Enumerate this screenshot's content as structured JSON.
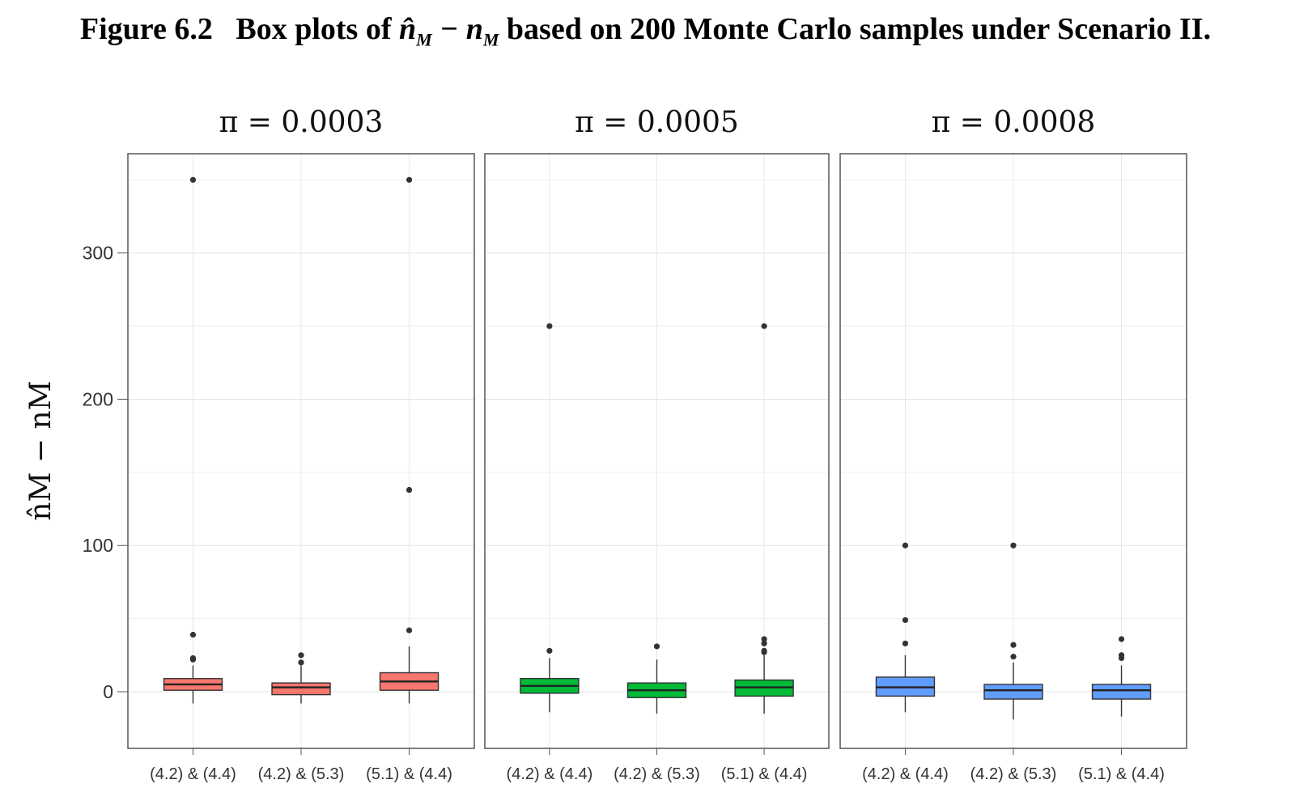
{
  "figure": {
    "label": "Figure 6.2",
    "prefix": "Box plots of",
    "suffix": "based on 200 Monte Carlo samples under Scenario II."
  },
  "chart_data": {
    "type": "box",
    "ylabel": "n̂M − nM",
    "ylim": [
      -38,
      365
    ],
    "yticks": [
      0,
      100,
      200,
      300
    ],
    "grid": true,
    "categories": [
      "(4.2) & (4.4)",
      "(4.2) & (5.3)",
      "(5.1) & (4.4)"
    ],
    "panels": [
      {
        "title": "π = 0.0003",
        "color": "#F8766D",
        "boxes": [
          {
            "whisker_low": -8,
            "q1": 1,
            "median": 5,
            "q3": 9,
            "whisker_high": 18,
            "outliers": [
              22,
              23,
              39,
              350
            ]
          },
          {
            "whisker_low": -8,
            "q1": -2,
            "median": 3,
            "q3": 6,
            "whisker_high": 18,
            "outliers": [
              20,
              25
            ]
          },
          {
            "whisker_low": -8,
            "q1": 1,
            "median": 7,
            "q3": 13,
            "whisker_high": 31,
            "outliers": [
              42,
              138,
              350
            ]
          }
        ]
      },
      {
        "title": "π = 0.0005",
        "color": "#00BA38",
        "boxes": [
          {
            "whisker_low": -14,
            "q1": -1,
            "median": 4,
            "q3": 9,
            "whisker_high": 23,
            "outliers": [
              28,
              250
            ]
          },
          {
            "whisker_low": -15,
            "q1": -4,
            "median": 1,
            "q3": 6,
            "whisker_high": 22,
            "outliers": [
              31
            ]
          },
          {
            "whisker_low": -15,
            "q1": -3,
            "median": 3,
            "q3": 8,
            "whisker_high": 25,
            "outliers": [
              27,
              28,
              33,
              36,
              250
            ]
          }
        ]
      },
      {
        "title": "π = 0.0008",
        "color": "#619CFF",
        "boxes": [
          {
            "whisker_low": -14,
            "q1": -3,
            "median": 3,
            "q3": 10,
            "whisker_high": 25,
            "outliers": [
              33,
              49,
              100
            ]
          },
          {
            "whisker_low": -19,
            "q1": -5,
            "median": 1,
            "q3": 5,
            "whisker_high": 20,
            "outliers": [
              24,
              32,
              100
            ]
          },
          {
            "whisker_low": -17,
            "q1": -5,
            "median": 1,
            "q3": 5,
            "whisker_high": 18,
            "outliers": [
              23,
              25,
              36
            ]
          }
        ]
      }
    ]
  }
}
